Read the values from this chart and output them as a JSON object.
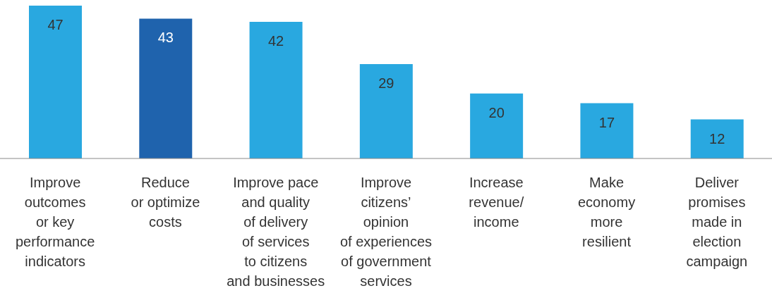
{
  "chart_data": {
    "type": "bar",
    "categories": [
      "Improve\noutcomes\nor key\nperformance\nindicators",
      "Reduce\nor optimize\ncosts",
      "Improve pace\nand quality\nof delivery\nof services\nto citizens\nand businesses",
      "Improve\ncitizens’\nopinion\nof experiences\nof government\nservices",
      "Increase\nrevenue/\nincome",
      "Make\neconomy\nmore\nresilient",
      "Deliver\npromises\nmade in\nelection\ncampaign"
    ],
    "values": [
      47,
      43,
      42,
      29,
      20,
      17,
      12
    ],
    "colors": [
      "#29a8e0",
      "#1f63ad",
      "#29a8e0",
      "#29a8e0",
      "#29a8e0",
      "#29a8e0",
      "#29a8e0"
    ],
    "data_labels": true
  }
}
